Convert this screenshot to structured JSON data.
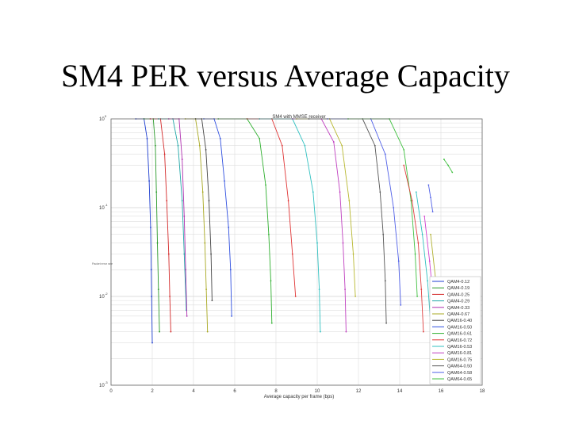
{
  "slide": {
    "title": "SM4 PER versus Average Capacity"
  },
  "chart_data": {
    "type": "line",
    "title": "SM4 with MMSE receiver",
    "xlabel": "Average capacity per frame (bps)",
    "ylabel": "",
    "side_label": "Packet error rate",
    "xlim": [
      0,
      18
    ],
    "ylim": [
      0.001,
      1
    ],
    "yscale": "log",
    "grid": true,
    "legend_position": "bottom-right",
    "x_ticks": [
      "0",
      "2",
      "4",
      "6",
      "8",
      "10",
      "12",
      "14",
      "16",
      "18"
    ],
    "y_ticks": [
      {
        "base": "10",
        "exp": "0",
        "value": 1
      },
      {
        "base": "10",
        "exp": "-1",
        "value": 0.1
      },
      {
        "base": "10",
        "exp": "-2",
        "value": 0.01
      },
      {
        "base": "10",
        "exp": "-3",
        "value": 0.001
      }
    ],
    "series": [
      {
        "name": "QAM4-0.12",
        "color": "#1f3fd0",
        "x": [
          1.2,
          1.6,
          1.75,
          1.85,
          1.92,
          1.95,
          1.97,
          2.0
        ],
        "y": [
          1,
          1,
          0.6,
          0.2,
          0.06,
          0.02,
          0.01,
          0.003
        ]
      },
      {
        "name": "QAM4-0.19",
        "color": "#2a9a2a",
        "x": [
          1.6,
          2.05,
          2.15,
          2.2,
          2.25,
          2.3,
          2.35
        ],
        "y": [
          1,
          1,
          0.5,
          0.15,
          0.04,
          0.012,
          0.004
        ]
      },
      {
        "name": "QAM4-0.25",
        "color": "#d42a2a",
        "x": [
          1.9,
          2.4,
          2.6,
          2.7,
          2.8,
          2.85,
          2.9
        ],
        "y": [
          1,
          1,
          0.4,
          0.12,
          0.03,
          0.01,
          0.004
        ]
      },
      {
        "name": "QAM4-0.29",
        "color": "#22a8a8",
        "x": [
          2.3,
          3.0,
          3.25,
          3.45,
          3.55,
          3.65
        ],
        "y": [
          1,
          1,
          0.5,
          0.12,
          0.03,
          0.007
        ]
      },
      {
        "name": "QAM4-0.33",
        "color": "#b030b0",
        "x": [
          2.8,
          3.3,
          3.45,
          3.55,
          3.62,
          3.68
        ],
        "y": [
          1,
          1,
          0.35,
          0.08,
          0.02,
          0.006
        ]
      },
      {
        "name": "QAM4-0.67",
        "color": "#a8a820",
        "x": [
          3.6,
          4.1,
          4.3,
          4.45,
          4.55,
          4.62,
          4.68
        ],
        "y": [
          1,
          1,
          0.5,
          0.15,
          0.04,
          0.012,
          0.004
        ]
      },
      {
        "name": "QAM16-0.40",
        "color": "#444444",
        "x": [
          4.1,
          4.4,
          4.6,
          4.75,
          4.85,
          4.9
        ],
        "y": [
          1,
          1,
          0.45,
          0.12,
          0.03,
          0.009
        ]
      },
      {
        "name": "QAM16-0.50",
        "color": "#3050e0",
        "x": [
          4.5,
          5.0,
          5.3,
          5.5,
          5.7,
          5.8,
          5.85
        ],
        "y": [
          1,
          1,
          0.6,
          0.2,
          0.06,
          0.02,
          0.006
        ]
      },
      {
        "name": "QAM16-0.61",
        "color": "#30b030",
        "x": [
          5.2,
          6.6,
          7.2,
          7.5,
          7.65,
          7.75,
          7.8
        ],
        "y": [
          1,
          1,
          0.6,
          0.18,
          0.05,
          0.015,
          0.005
        ]
      },
      {
        "name": "QAM16-0.72",
        "color": "#e03535",
        "x": [
          6.6,
          7.8,
          8.3,
          8.6,
          8.8,
          8.95
        ],
        "y": [
          1,
          1,
          0.5,
          0.12,
          0.03,
          0.01
        ]
      },
      {
        "name": "QAM16-0.53",
        "color": "#30c0c0",
        "x": [
          7.2,
          8.8,
          9.4,
          9.8,
          10.0,
          10.1,
          10.15
        ],
        "y": [
          1,
          1,
          0.5,
          0.15,
          0.04,
          0.012,
          0.004
        ]
      },
      {
        "name": "QAM16-0.81",
        "color": "#c040c0",
        "x": [
          8.8,
          10.2,
          10.8,
          11.1,
          11.25,
          11.35,
          11.4
        ],
        "y": [
          1,
          1,
          0.55,
          0.15,
          0.04,
          0.012,
          0.004
        ]
      },
      {
        "name": "QAM16-0.75",
        "color": "#b8b830",
        "x": [
          9.0,
          10.6,
          11.2,
          11.55,
          11.75,
          11.85
        ],
        "y": [
          1,
          1,
          0.5,
          0.12,
          0.03,
          0.01
        ]
      },
      {
        "name": "QAM64-0.50",
        "color": "#555555",
        "x": [
          9.6,
          12.2,
          12.8,
          13.05,
          13.2,
          13.3,
          13.35
        ],
        "y": [
          1,
          1,
          0.5,
          0.15,
          0.05,
          0.015,
          0.005
        ]
      },
      {
        "name": "QAM64-0.58",
        "color": "#5060e8",
        "x": [
          10.5,
          12.6,
          13.3,
          13.7,
          13.95,
          14.05
        ],
        "y": [
          1,
          1,
          0.4,
          0.1,
          0.025,
          0.008
        ]
      },
      {
        "name": "QAM64-0.65",
        "color": "#40c040",
        "x": [
          11.5,
          13.5,
          14.2,
          14.55,
          14.75,
          14.85
        ],
        "y": [
          1,
          1,
          0.45,
          0.12,
          0.03,
          0.01
        ]
      }
    ],
    "extra_series": [
      {
        "color": "#e04040",
        "x": [
          14.2,
          14.6,
          14.9,
          15.05,
          15.15
        ],
        "y": [
          0.3,
          0.12,
          0.04,
          0.012,
          0.004
        ]
      },
      {
        "color": "#30c0c0",
        "x": [
          14.8,
          15.1,
          15.35,
          15.5
        ],
        "y": [
          0.15,
          0.05,
          0.015,
          0.005
        ]
      },
      {
        "color": "#d040d0",
        "x": [
          15.2,
          15.45,
          15.65
        ],
        "y": [
          0.08,
          0.025,
          0.008
        ]
      },
      {
        "color": "#b0b030",
        "x": [
          15.5,
          15.75,
          15.95
        ],
        "y": [
          0.05,
          0.015,
          0.005
        ]
      },
      {
        "color": "#5060e8",
        "x": [
          15.4,
          15.5,
          15.6
        ],
        "y": [
          0.18,
          0.13,
          0.09
        ]
      },
      {
        "color": "#40c040",
        "x": [
          16.15,
          16.35,
          16.55
        ],
        "y": [
          0.35,
          0.3,
          0.25
        ]
      }
    ]
  }
}
